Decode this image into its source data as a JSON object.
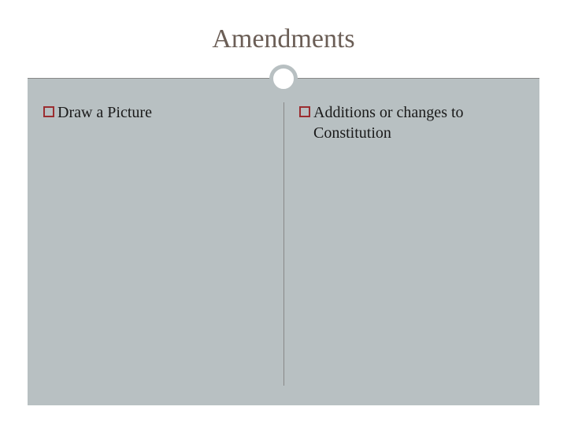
{
  "slide": {
    "title": "Amendments",
    "title_color": "#6b5e56",
    "title_fontsize": 34,
    "background_color": "#ffffff",
    "content_background": "#b8c0c2",
    "divider_color": "#888888",
    "circle_border_color": "#b8c0c2",
    "circle_border_width": 5,
    "bullet_border_color": "#9b2d30",
    "bullet_text_color": "#1a1a1a",
    "bullet_fontsize": 20,
    "left_column": {
      "items": [
        {
          "text": "Draw a Picture"
        }
      ]
    },
    "right_column": {
      "items": [
        {
          "text": "Additions or changes to Constitution"
        }
      ]
    }
  }
}
